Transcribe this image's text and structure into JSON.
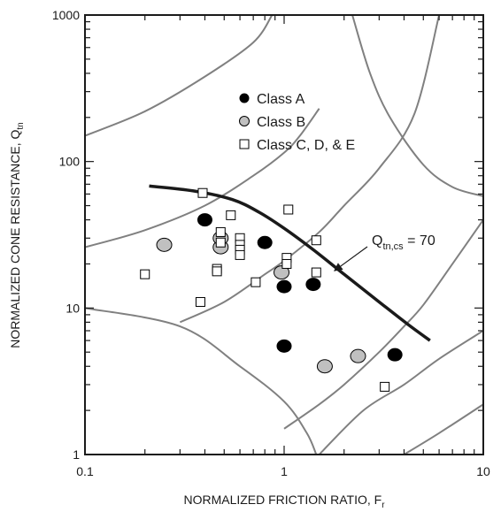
{
  "chart_data": {
    "type": "scatter",
    "title": "",
    "xlabel": "NORMALIZED FRICTION RATIO, F",
    "xlabel_sub": "r",
    "ylabel": "NORMALIZED CONE RESISTANCE, Q",
    "ylabel_sub": "tn",
    "x_scale": "log",
    "y_scale": "log",
    "xlim": [
      0.1,
      10
    ],
    "ylim": [
      1,
      1000
    ],
    "x_tick_labels": [
      {
        "value": 0.1,
        "label": "0.1"
      },
      {
        "value": 1,
        "label": "1"
      },
      {
        "value": 10,
        "label": "10"
      }
    ],
    "y_tick_labels": [
      {
        "value": 1,
        "label": "1"
      },
      {
        "value": 10,
        "label": "10"
      },
      {
        "value": 100,
        "label": "100"
      },
      {
        "value": 1000,
        "label": "1000"
      }
    ],
    "grid": false,
    "legend_position": "top-center",
    "series": [
      {
        "name": "Class A",
        "marker": "filled-circle",
        "color": "#000000",
        "points": [
          {
            "x": 0.4,
            "y": 40
          },
          {
            "x": 0.8,
            "y": 28
          },
          {
            "x": 1.0,
            "y": 14
          },
          {
            "x": 1.4,
            "y": 14.5
          },
          {
            "x": 1.0,
            "y": 5.5
          },
          {
            "x": 3.6,
            "y": 4.8
          }
        ]
      },
      {
        "name": "Class B",
        "marker": "gray-circle",
        "color": "#c0c0c0",
        "points": [
          {
            "x": 0.25,
            "y": 27
          },
          {
            "x": 0.48,
            "y": 26
          },
          {
            "x": 0.48,
            "y": 30
          },
          {
            "x": 0.97,
            "y": 17.5
          },
          {
            "x": 1.6,
            "y": 4.0
          },
          {
            "x": 2.35,
            "y": 4.7
          }
        ]
      },
      {
        "name": "Class C, D, & E",
        "marker": "open-square",
        "color": "#000000",
        "points": [
          {
            "x": 0.39,
            "y": 61
          },
          {
            "x": 0.54,
            "y": 43
          },
          {
            "x": 0.48,
            "y": 33
          },
          {
            "x": 0.48,
            "y": 28
          },
          {
            "x": 0.6,
            "y": 30
          },
          {
            "x": 0.6,
            "y": 27
          },
          {
            "x": 0.6,
            "y": 25
          },
          {
            "x": 0.6,
            "y": 23
          },
          {
            "x": 1.05,
            "y": 47
          },
          {
            "x": 1.45,
            "y": 29
          },
          {
            "x": 1.03,
            "y": 22
          },
          {
            "x": 1.03,
            "y": 20
          },
          {
            "x": 0.2,
            "y": 17
          },
          {
            "x": 0.46,
            "y": 18.5
          },
          {
            "x": 0.46,
            "y": 17.8
          },
          {
            "x": 0.72,
            "y": 15
          },
          {
            "x": 1.45,
            "y": 17.5
          },
          {
            "x": 0.38,
            "y": 11
          },
          {
            "x": 3.2,
            "y": 2.9
          }
        ]
      }
    ],
    "boundary_curve": {
      "label": "Q",
      "label_sub": "tn,cs",
      "label_rest": " = 70",
      "color": "#1a1a1a",
      "points": [
        {
          "x": 0.21,
          "y": 68
        },
        {
          "x": 0.35,
          "y": 63
        },
        {
          "x": 0.55,
          "y": 55
        },
        {
          "x": 0.75,
          "y": 45
        },
        {
          "x": 1.0,
          "y": 35
        },
        {
          "x": 1.4,
          "y": 25
        },
        {
          "x": 2.0,
          "y": 17
        },
        {
          "x": 3.0,
          "y": 11
        },
        {
          "x": 4.2,
          "y": 7.7
        },
        {
          "x": 5.4,
          "y": 6.0
        }
      ]
    },
    "zone_boundaries": {
      "color": "#808080",
      "curves": [
        [
          {
            "x": 0.1,
            "y": 150
          },
          {
            "x": 0.2,
            "y": 220
          },
          {
            "x": 0.4,
            "y": 380
          },
          {
            "x": 0.7,
            "y": 650
          },
          {
            "x": 0.87,
            "y": 1000
          }
        ],
        [
          {
            "x": 0.1,
            "y": 26
          },
          {
            "x": 0.2,
            "y": 34
          },
          {
            "x": 0.4,
            "y": 50
          },
          {
            "x": 0.7,
            "y": 80
          },
          {
            "x": 1.0,
            "y": 115
          },
          {
            "x": 1.2,
            "y": 150
          },
          {
            "x": 1.5,
            "y": 230
          }
        ],
        [
          {
            "x": 0.3,
            "y": 8
          },
          {
            "x": 0.5,
            "y": 11
          },
          {
            "x": 0.8,
            "y": 17
          },
          {
            "x": 1.0,
            "y": 21
          },
          {
            "x": 1.5,
            "y": 33
          },
          {
            "x": 2.0,
            "y": 50
          },
          {
            "x": 3.0,
            "y": 90
          },
          {
            "x": 4.5,
            "y": 210
          },
          {
            "x": 6.0,
            "y": 1000
          }
        ],
        [
          {
            "x": 1.0,
            "y": 1.5
          },
          {
            "x": 1.5,
            "y": 2.2
          },
          {
            "x": 2.0,
            "y": 3.0
          },
          {
            "x": 3.0,
            "y": 5.0
          },
          {
            "x": 4.0,
            "y": 7.5
          },
          {
            "x": 5.0,
            "y": 10.5
          },
          {
            "x": 7.0,
            "y": 20
          },
          {
            "x": 10.0,
            "y": 40
          }
        ],
        [
          {
            "x": 0.1,
            "y": 10
          },
          {
            "x": 0.3,
            "y": 7.5
          },
          {
            "x": 0.6,
            "y": 4
          },
          {
            "x": 1.0,
            "y": 2.3
          },
          {
            "x": 1.3,
            "y": 1.4
          },
          {
            "x": 1.45,
            "y": 1.0
          }
        ],
        [
          {
            "x": 2.2,
            "y": 1000
          },
          {
            "x": 2.7,
            "y": 400
          },
          {
            "x": 3.4,
            "y": 200
          },
          {
            "x": 5.0,
            "y": 95
          },
          {
            "x": 7.0,
            "y": 67
          },
          {
            "x": 10.0,
            "y": 58
          }
        ],
        [
          {
            "x": 1.5,
            "y": 1.0
          },
          {
            "x": 2.5,
            "y": 2.0
          },
          {
            "x": 4.0,
            "y": 3.0
          },
          {
            "x": 6.0,
            "y": 4.5
          },
          {
            "x": 10.0,
            "y": 7.0
          }
        ],
        [
          {
            "x": 4.0,
            "y": 1.0
          },
          {
            "x": 6.0,
            "y": 1.4
          },
          {
            "x": 10.0,
            "y": 2.2
          }
        ]
      ]
    }
  }
}
